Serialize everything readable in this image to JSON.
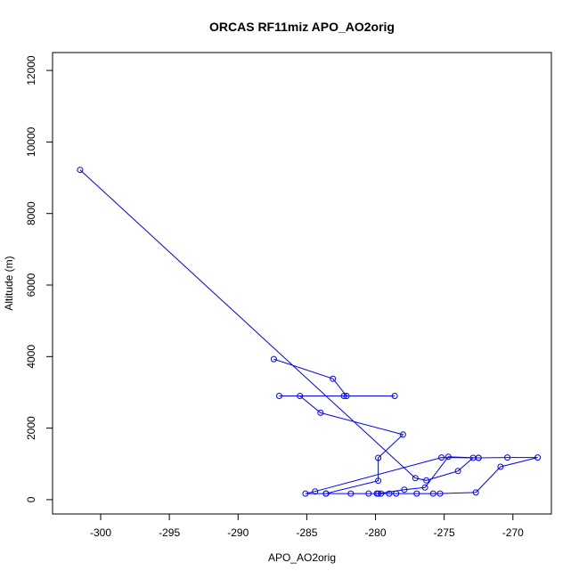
{
  "chart_data": {
    "type": "line",
    "title": "ORCAS RF11miz APO_AO2orig",
    "xlabel": "APO_AO2orig",
    "ylabel": "Altitude (m)",
    "xlim": [
      -303.5,
      -267.2
    ],
    "ylim": [
      -400,
      12500
    ],
    "xticks": [
      -300,
      -295,
      -290,
      -285,
      -280,
      -275,
      -270
    ],
    "yticks": [
      0,
      2000,
      4000,
      6000,
      8000,
      10000,
      12000
    ],
    "grid": false,
    "marker": "open-circle",
    "color": "#0000ff",
    "series": [
      {
        "points": [
          [
            -301.5,
            9220
          ],
          [
            -277.1,
            600
          ],
          [
            -276.3,
            540
          ],
          [
            -274.0,
            800
          ],
          [
            -272.9,
            1170
          ],
          [
            -272.5,
            1170
          ],
          [
            -274.7,
            1200
          ],
          [
            -276.4,
            340
          ],
          [
            -277.9,
            280
          ],
          [
            -279.8,
            170
          ],
          [
            -280.5,
            170
          ],
          [
            -281.8,
            170
          ],
          [
            -283.6,
            170
          ],
          [
            -285.1,
            170
          ],
          [
            -284.4,
            230
          ],
          [
            -275.2,
            1180
          ],
          [
            -272.5,
            1170
          ],
          [
            -270.4,
            1180
          ],
          [
            -268.2,
            1180
          ],
          [
            -270.9,
            920
          ],
          [
            -272.7,
            200
          ],
          [
            -275.3,
            170
          ],
          [
            -275.8,
            170
          ],
          [
            -277.0,
            170
          ],
          [
            -278.5,
            170
          ],
          [
            -279.0,
            170
          ],
          [
            -279.6,
            170
          ],
          [
            -279.9,
            170
          ],
          [
            -283.6,
            170
          ],
          [
            -279.8,
            530
          ],
          [
            -279.8,
            1170
          ],
          [
            -278.0,
            1820
          ],
          [
            -284.0,
            2430
          ],
          [
            -285.5,
            2900
          ],
          [
            -287.0,
            2900
          ],
          [
            -282.3,
            2900
          ],
          [
            -278.6,
            2900
          ],
          [
            -282.1,
            2900
          ],
          [
            -283.1,
            3380
          ],
          [
            -287.4,
            3930
          ]
        ]
      }
    ]
  }
}
